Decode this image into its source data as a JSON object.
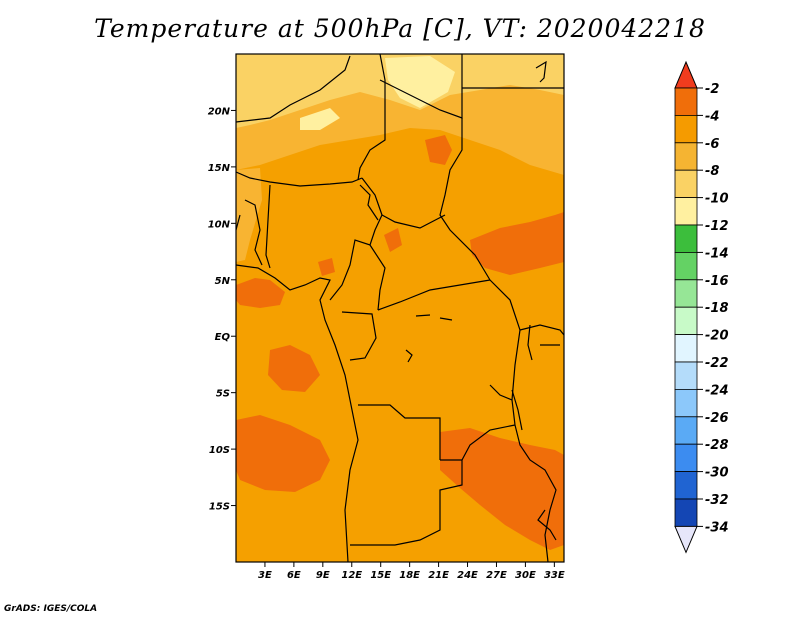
{
  "title": "Temperature at 500hPa [C], VT: 2020042218",
  "credit": "GrADS: IGES/COLA",
  "map": {
    "region": "Central Africa",
    "lat_range": [
      -20,
      25
    ],
    "lon_range": [
      0,
      34
    ],
    "lat_ticks": [
      {
        "value": 20,
        "label": "20N"
      },
      {
        "value": 15,
        "label": "15N"
      },
      {
        "value": 10,
        "label": "10N"
      },
      {
        "value": 5,
        "label": "5N"
      },
      {
        "value": 0,
        "label": "EQ"
      },
      {
        "value": -5,
        "label": "5S"
      },
      {
        "value": -10,
        "label": "10S"
      },
      {
        "value": -15,
        "label": "15S"
      }
    ],
    "lon_ticks": [
      {
        "value": 3,
        "label": "3E"
      },
      {
        "value": 6,
        "label": "6E"
      },
      {
        "value": 9,
        "label": "9E"
      },
      {
        "value": 12,
        "label": "12E"
      },
      {
        "value": 15,
        "label": "15E"
      },
      {
        "value": 18,
        "label": "18E"
      },
      {
        "value": 21,
        "label": "21E"
      },
      {
        "value": 24,
        "label": "24E"
      },
      {
        "value": 27,
        "label": "27E"
      },
      {
        "value": 30,
        "label": "30E"
      },
      {
        "value": 33,
        "label": "33E"
      }
    ]
  },
  "colorbar": {
    "labels": [
      "-2",
      "-4",
      "-6",
      "-8",
      "-10",
      "-12",
      "-14",
      "-16",
      "-18",
      "-20",
      "-22",
      "-24",
      "-26",
      "-28",
      "-30",
      "-32",
      "-34"
    ],
    "colors": [
      "#f03c1e",
      "#f06e0a",
      "#f59b00",
      "#f5b432",
      "#fad264",
      "#fff0a0",
      "#3cbe3c",
      "#64d264",
      "#96e696",
      "#c8fac8",
      "#e1f5ff",
      "#b4dcfa",
      "#8cc8fa",
      "#5aaaf5",
      "#3c8cf0",
      "#2064d2",
      "#1446b4",
      "#0a1e78"
    ],
    "top_arrow_color": "#f03c1e",
    "bottom_arrow_color": "#e6e6fa"
  }
}
